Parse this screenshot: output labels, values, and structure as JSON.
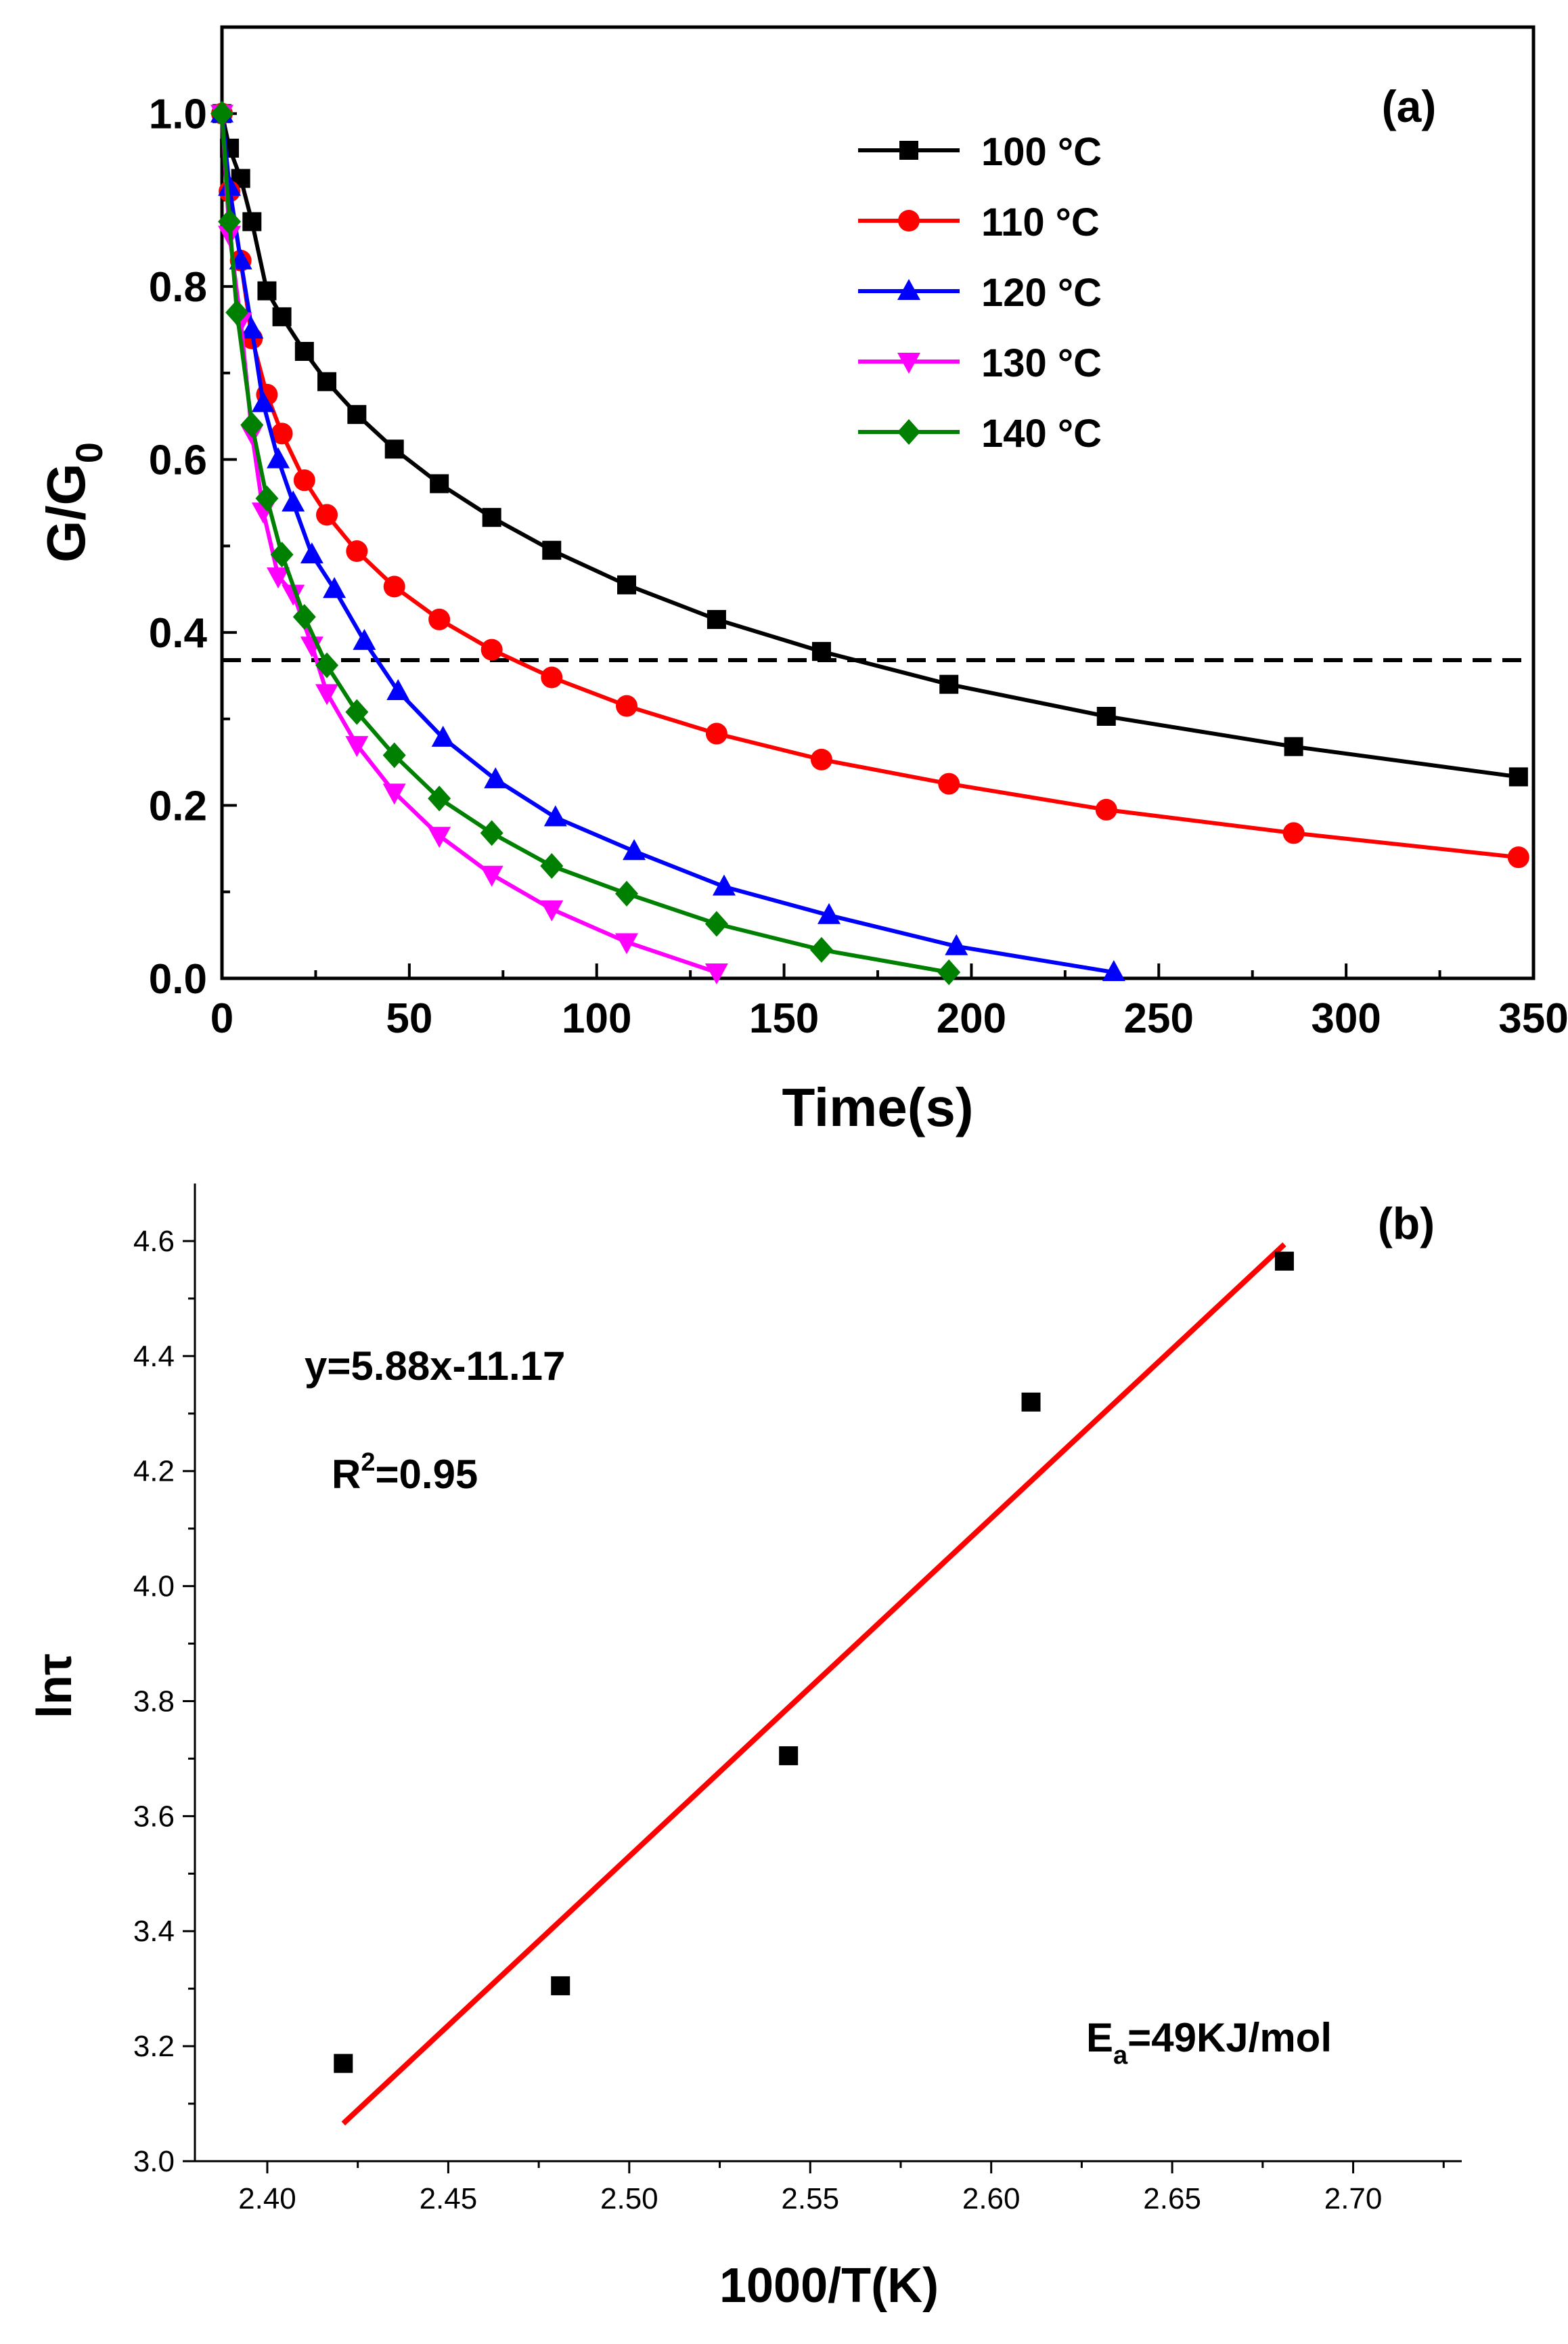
{
  "chart_data": [
    {
      "panel": "(a)",
      "type": "line",
      "xlabel": "Time(s)",
      "ylabel": "G/G",
      "ylabel_sub": "0",
      "xlim": [
        0,
        350
      ],
      "ylim": [
        0,
        1.1
      ],
      "xticks": [
        0,
        50,
        100,
        150,
        200,
        250,
        300,
        350
      ],
      "yticks": [
        0.0,
        0.2,
        0.4,
        0.6,
        0.8,
        1.0
      ],
      "xtick_labels": [
        "0",
        "50",
        "100",
        "150",
        "200",
        "250",
        "300",
        "350"
      ],
      "ytick_labels": [
        "0.0",
        "0.2",
        "0.4",
        "0.6",
        "0.8",
        "1.0"
      ],
      "reference_line": {
        "y": 0.368,
        "style": "dashed"
      },
      "legend_position": "top-center",
      "series": [
        {
          "name": "100 °C",
          "color": "#000000",
          "marker": "square",
          "x": [
            0,
            2,
            5,
            8,
            12,
            16,
            22,
            28,
            36,
            46,
            58,
            72,
            88,
            108,
            132,
            160,
            194,
            236,
            286,
            346
          ],
          "y": [
            1.0,
            0.96,
            0.925,
            0.875,
            0.795,
            0.765,
            0.725,
            0.69,
            0.652,
            0.612,
            0.572,
            0.533,
            0.495,
            0.455,
            0.415,
            0.378,
            0.34,
            0.303,
            0.268,
            0.233
          ]
        },
        {
          "name": "110 °C",
          "color": "#ff0000",
          "marker": "circle",
          "x": [
            0,
            2,
            5,
            8,
            12,
            16,
            22,
            28,
            36,
            46,
            58,
            72,
            88,
            108,
            132,
            160,
            194,
            236,
            286,
            346
          ],
          "y": [
            1.0,
            0.91,
            0.83,
            0.74,
            0.675,
            0.63,
            0.576,
            0.536,
            0.494,
            0.453,
            0.415,
            0.38,
            0.348,
            0.315,
            0.283,
            0.253,
            0.225,
            0.195,
            0.168,
            0.14
          ]
        },
        {
          "name": "120 °C",
          "color": "#0000ff",
          "marker": "triangle-up",
          "x": [
            0,
            2,
            5,
            8,
            11,
            15,
            19,
            24,
            30,
            38,
            47,
            59,
            73,
            89,
            110,
            134,
            162,
            196,
            238
          ],
          "y": [
            1.0,
            0.915,
            0.83,
            0.75,
            0.665,
            0.6,
            0.55,
            0.49,
            0.45,
            0.39,
            0.332,
            0.278,
            0.23,
            0.186,
            0.147,
            0.106,
            0.073,
            0.037,
            0.007
          ]
        },
        {
          "name": "130 °C",
          "color": "#ff00ff",
          "marker": "triangle-down",
          "x": [
            0,
            2,
            5,
            8,
            11,
            15,
            19,
            24,
            28,
            36,
            46,
            58,
            72,
            88,
            108,
            132
          ],
          "y": [
            1.0,
            0.86,
            0.76,
            0.63,
            0.54,
            0.465,
            0.445,
            0.385,
            0.33,
            0.27,
            0.215,
            0.165,
            0.12,
            0.08,
            0.042,
            0.007
          ]
        },
        {
          "name": "140 °C",
          "color": "#008000",
          "marker": "diamond",
          "x": [
            0,
            2,
            4,
            8,
            12,
            16,
            22,
            28,
            36,
            46,
            58,
            72,
            88,
            108,
            132,
            160,
            194
          ],
          "y": [
            1.0,
            0.875,
            0.77,
            0.64,
            0.555,
            0.49,
            0.418,
            0.362,
            0.308,
            0.258,
            0.208,
            0.168,
            0.13,
            0.098,
            0.063,
            0.033,
            0.007
          ]
        }
      ]
    },
    {
      "panel": "(b)",
      "type": "scatter",
      "xlabel": "1000/T(K)",
      "ylabel": "lnτ",
      "xlim": [
        2.38,
        2.73
      ],
      "ylim": [
        3.0,
        4.7
      ],
      "xticks": [
        2.4,
        2.45,
        2.5,
        2.55,
        2.6,
        2.65,
        2.7
      ],
      "yticks": [
        3.0,
        3.2,
        3.4,
        3.6,
        3.8,
        4.0,
        4.2,
        4.4,
        4.6
      ],
      "xtick_labels": [
        "2.40",
        "2.45",
        "2.50",
        "2.55",
        "2.60",
        "2.65",
        "2.70"
      ],
      "ytick_labels": [
        "3.0",
        "3.2",
        "3.4",
        "3.6",
        "3.8",
        "4.0",
        "4.2",
        "4.4",
        "4.6"
      ],
      "points": {
        "x": [
          2.421,
          2.481,
          2.544,
          2.611,
          2.681
        ],
        "y": [
          3.17,
          3.305,
          3.705,
          4.32,
          4.565
        ],
        "color": "#000000",
        "marker": "square"
      },
      "fit_line": {
        "slope": 5.88,
        "intercept": -11.17,
        "x_range": [
          2.421,
          2.681
        ],
        "color": "#ff0000"
      },
      "annotations": {
        "equation": "y=5.88x-11.17",
        "r2_prefix": "R",
        "r2_sup": "2",
        "r2_value": "=0.95",
        "ea_prefix": "E",
        "ea_sub": "a",
        "ea_value": "=49KJ/mol"
      }
    }
  ]
}
